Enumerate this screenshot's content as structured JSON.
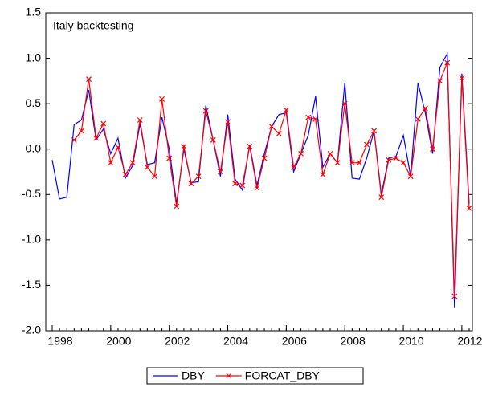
{
  "chart_data": {
    "type": "line",
    "title": "Italy backtesting",
    "categories": [
      "1998",
      null,
      null,
      null,
      null,
      null,
      null,
      null,
      "2000",
      null,
      null,
      null,
      null,
      null,
      null,
      null,
      "2002",
      null,
      null,
      null,
      null,
      null,
      null,
      null,
      "2004",
      null,
      null,
      null,
      null,
      null,
      null,
      null,
      "2006",
      null,
      null,
      null,
      null,
      null,
      null,
      null,
      "2008",
      null,
      null,
      null,
      null,
      null,
      null,
      null,
      "2010",
      null,
      null,
      null,
      null,
      null,
      null,
      null,
      "2012",
      null
    ],
    "series": [
      {
        "name": "DBY",
        "color": "#0000ff",
        "marker": false,
        "values": [
          -0.12,
          -0.55,
          -0.53,
          0.27,
          0.32,
          0.65,
          0.1,
          0.22,
          -0.05,
          0.12,
          -0.32,
          -0.18,
          0.28,
          -0.17,
          -0.15,
          0.35,
          0.0,
          -0.6,
          0.0,
          -0.37,
          -0.36,
          0.48,
          0.1,
          -0.3,
          0.38,
          -0.33,
          -0.45,
          0.05,
          -0.4,
          -0.05,
          0.25,
          0.38,
          0.4,
          -0.25,
          -0.05,
          0.15,
          0.58,
          -0.2,
          -0.05,
          -0.15,
          0.73,
          -0.32,
          -0.33,
          -0.1,
          0.2,
          -0.5,
          -0.1,
          -0.08,
          0.15,
          -0.3,
          0.73,
          0.4,
          -0.05,
          0.9,
          1.05,
          -1.75,
          0.83,
          -0.6
        ]
      },
      {
        "name": "FORCAT_DBY",
        "color": "#ff0000",
        "marker": true,
        "values": [
          null,
          null,
          null,
          0.1,
          0.2,
          0.77,
          0.12,
          0.28,
          -0.15,
          0.02,
          -0.28,
          -0.15,
          0.32,
          -0.2,
          -0.3,
          0.55,
          -0.1,
          -0.63,
          0.03,
          -0.38,
          -0.3,
          0.42,
          0.1,
          -0.25,
          0.3,
          -0.38,
          -0.4,
          0.03,
          -0.43,
          -0.1,
          0.25,
          0.17,
          0.43,
          -0.2,
          -0.05,
          0.35,
          0.33,
          -0.28,
          -0.05,
          -0.15,
          0.5,
          -0.15,
          -0.15,
          0.05,
          0.2,
          -0.53,
          -0.12,
          -0.1,
          -0.15,
          -0.3,
          0.33,
          0.45,
          0.0,
          0.75,
          0.95,
          -1.62,
          0.78,
          -0.65
        ]
      }
    ],
    "ylim": [
      -2.0,
      1.5
    ],
    "yticks": [
      {
        "value": -2.0,
        "label": "-2.0"
      },
      -1.5,
      {
        "value": -1.0,
        "label": "-1.0"
      },
      -0.5,
      {
        "value": 0.0,
        "label": "0.0"
      },
      0.5,
      {
        "value": 1.0,
        "label": "1.0"
      },
      1.5
    ],
    "grid": false,
    "legend": "bottom"
  }
}
